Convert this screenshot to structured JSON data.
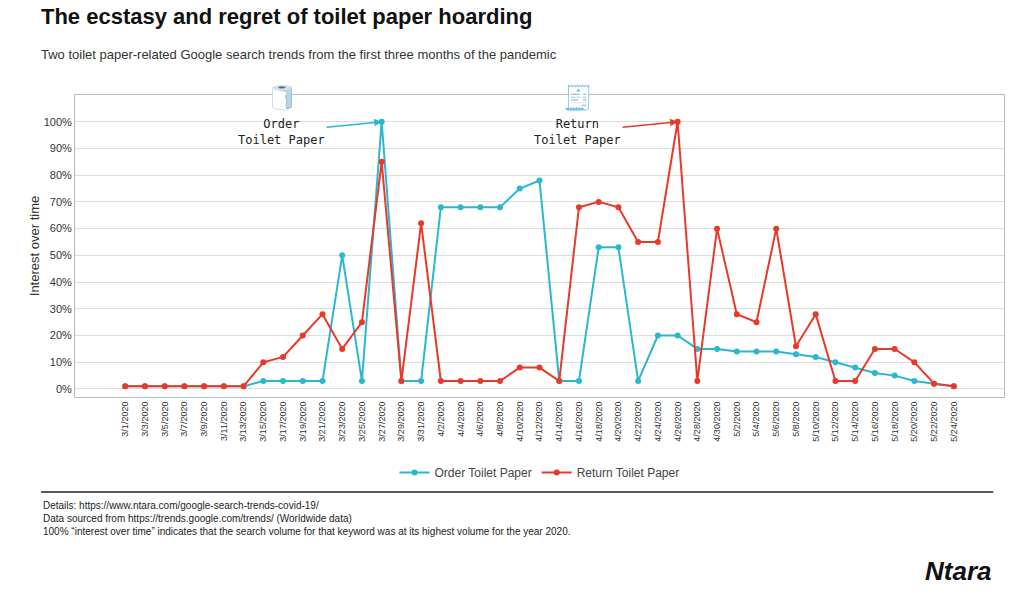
{
  "chart_data": {
    "type": "line",
    "title": "The ecstasy and regret of toilet paper hoarding",
    "subtitle": "Two toilet paper-related Google search trends from the first three months of the pandemic",
    "ylabel": "Interest over time",
    "categories": [
      "3/1/2020",
      "3/3/2020",
      "3/5/2020",
      "3/7/2020",
      "3/9/2020",
      "3/11/2020",
      "3/13/2020",
      "3/15/2020",
      "3/17/2020",
      "3/19/2020",
      "3/21/2020",
      "3/23/2020",
      "3/25/2020",
      "3/27/2020",
      "3/29/2020",
      "3/31/2020",
      "4/2/2020",
      "4/4/2020",
      "4/6/2020",
      "4/8/2020",
      "4/10/2020",
      "4/12/2020",
      "4/14/2020",
      "4/16/2020",
      "4/18/2020",
      "4/20/2020",
      "4/22/2020",
      "4/24/2020",
      "4/26/2020",
      "4/28/2020",
      "4/30/2020",
      "5/2/2020",
      "5/4/2020",
      "5/6/2020",
      "5/8/2020",
      "5/10/2020",
      "5/12/2020",
      "5/14/2020",
      "5/16/2020",
      "5/18/2020",
      "5/20/2020",
      "5/22/2020",
      "5/24/2020"
    ],
    "series": [
      {
        "name": "Order Toilet Paper",
        "color": "#29B8D0",
        "marker": "circle",
        "values": [
          1,
          1,
          1,
          1,
          1,
          1,
          1,
          3,
          3,
          3,
          3,
          50,
          3,
          100,
          3,
          3,
          68,
          68,
          68,
          68,
          75,
          78,
          3,
          3,
          53,
          53,
          3,
          20,
          20,
          15,
          15,
          14,
          14,
          14,
          13,
          12,
          10,
          8,
          6,
          5,
          3,
          2,
          1
        ]
      },
      {
        "name": "Return Toilet Paper",
        "color": "#E8392A",
        "marker": "circle",
        "values": [
          1,
          1,
          1,
          1,
          1,
          1,
          1,
          10,
          12,
          20,
          28,
          15,
          25,
          85,
          3,
          62,
          3,
          3,
          3,
          3,
          8,
          8,
          3,
          68,
          70,
          68,
          55,
          55,
          100,
          3,
          60,
          28,
          25,
          60,
          16,
          28,
          3,
          3,
          15,
          15,
          10,
          2,
          1
        ]
      }
    ],
    "ylim": [
      -3,
      110
    ],
    "yticks": [
      {
        "value": 0,
        "label": "0%"
      },
      {
        "value": 10,
        "label": "10%"
      },
      {
        "value": 20,
        "label": "20%"
      },
      {
        "value": 30,
        "label": "30%"
      },
      {
        "value": 40,
        "label": "40%"
      },
      {
        "value": 50,
        "label": "50%"
      },
      {
        "value": 60,
        "label": "60%"
      },
      {
        "value": 70,
        "label": "70%"
      },
      {
        "value": 80,
        "label": "80%"
      },
      {
        "value": 90,
        "label": "90%"
      },
      {
        "value": 100,
        "label": "100%"
      }
    ],
    "grid": true,
    "legend": "bottom",
    "annotations": [
      {
        "text": "Order\nToilet Paper",
        "icon": "🧻",
        "x": "3/27/2020",
        "y": 100,
        "series": "Order Toilet Paper"
      },
      {
        "text": "Return\nToilet Paper",
        "icon": "🧾",
        "x": "4/26/2020",
        "y": 100,
        "series": "Return Toilet Paper"
      }
    ],
    "footer": "Details: https://www.ntara.com/google-search-trends-covid-19/\nData sourced from https://trends.google.com/trends/ (Worldwide data)\n100% “interest over time” indicates that the search volume for that keyword was at its highest volume for the year 2020.",
    "branding": "Ntara"
  }
}
